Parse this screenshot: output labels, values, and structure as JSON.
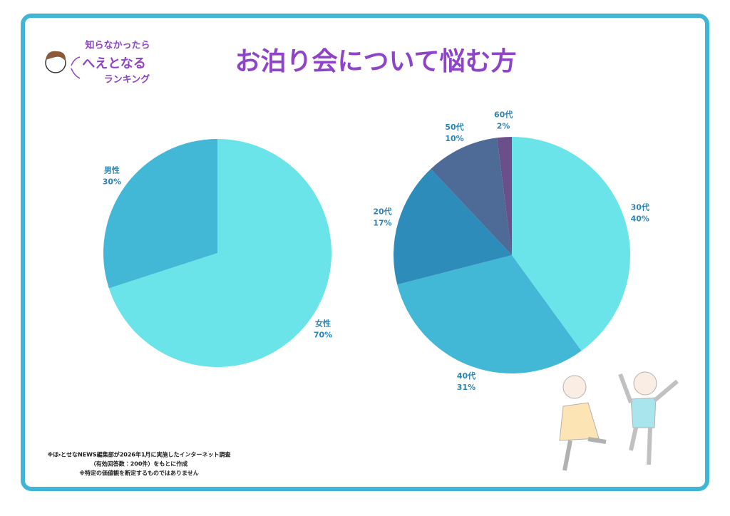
{
  "title": "お泊り会について悩む方",
  "logo": [
    "知らなかったら",
    "へえとなる",
    "ランキング"
  ],
  "notes": [
    "※ほ・とせなNEWS編集部が2026年1月に実施したインターネット調査",
    "（有効回答数：200件）をもとに作成",
    "※特定の価値観を断定するものではありません"
  ],
  "chart_data": [
    {
      "type": "pie",
      "categories": [
        "女性",
        "男性"
      ],
      "values": [
        70,
        30
      ],
      "value_labels": [
        "70%",
        "30%"
      ],
      "colors": [
        "#6ae4e8",
        "#42b8d6"
      ]
    },
    {
      "type": "pie",
      "categories": [
        "30代",
        "40代",
        "20代",
        "50代",
        "60代"
      ],
      "values": [
        40,
        31,
        17,
        10,
        2
      ],
      "value_labels": [
        "40%",
        "31%",
        "17%",
        "10%",
        "2%"
      ],
      "colors": [
        "#6ae4e8",
        "#42b8d6",
        "#2e8cba",
        "#4d6b96",
        "#6a4f8a"
      ]
    }
  ]
}
